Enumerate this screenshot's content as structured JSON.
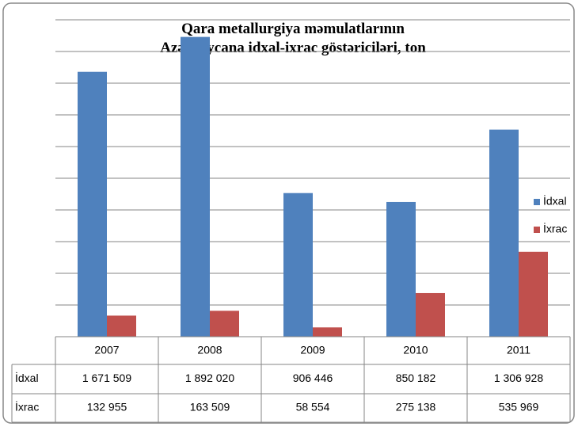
{
  "chart_data": {
    "type": "bar",
    "title": "Qara metallurgiya məmulatlarının Azərbaycana idxal-ixrac göstəriciləri, ton",
    "categories": [
      "2007",
      "2008",
      "2009",
      "2010",
      "2011"
    ],
    "series": [
      {
        "name": "İdxal",
        "color": "#4f81bd",
        "values": [
          1671509,
          1892020,
          906446,
          850182,
          1306928
        ],
        "value_labels": [
          "1 671 509",
          "1 892 020",
          "906 446",
          "850 182",
          "1 306 928"
        ]
      },
      {
        "name": "İxrac",
        "color": "#c0504d",
        "values": [
          132955,
          163509,
          58554,
          275138,
          535969
        ],
        "value_labels": [
          "132 955",
          "163 509",
          "58 554",
          "275 138",
          "535 969"
        ]
      }
    ],
    "ylim": [
      0,
      2000000
    ],
    "yticks": [
      0,
      200000,
      400000,
      600000,
      800000,
      1000000,
      1200000,
      1400000,
      1600000,
      1800000,
      2000000
    ],
    "grid": true,
    "legend": "right",
    "data_table": true
  }
}
